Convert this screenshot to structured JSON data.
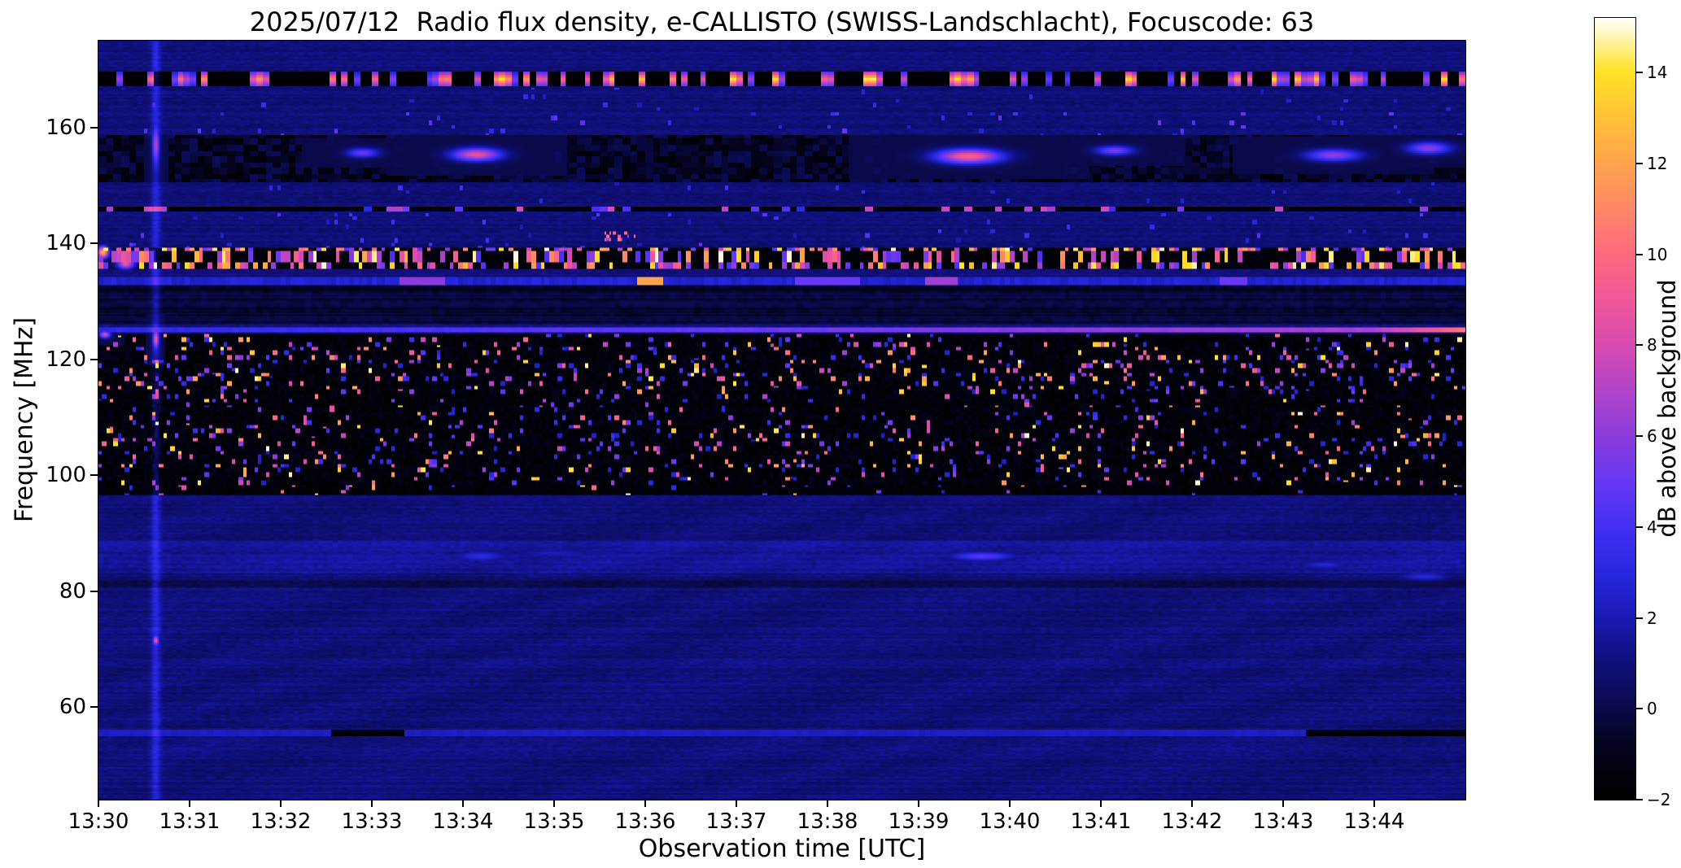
{
  "chart_data": {
    "type": "heatmap",
    "title": "2025/07/12  Radio flux density, e-CALLISTO (SWISS-Landschlacht), Focuscode: 63",
    "xlabel": "Observation time [UTC]",
    "ylabel": "Frequency [MHz]",
    "x_tick_labels": [
      "13:30",
      "13:31",
      "13:32",
      "13:33",
      "13:34",
      "13:35",
      "13:36",
      "13:37",
      "13:38",
      "13:39",
      "13:40",
      "13:41",
      "13:42",
      "13:43",
      "13:44"
    ],
    "x_range_minutes": [
      0,
      15
    ],
    "ylim": [
      44,
      175
    ],
    "y_ticks": [
      60,
      80,
      100,
      120,
      140,
      160
    ],
    "colorbar": {
      "label": "dB above background",
      "vmin": -2,
      "vmax": 15.2,
      "ticks": [
        {
          "v": -2,
          "label": "−2"
        },
        {
          "v": 0,
          "label": "0"
        },
        {
          "v": 2,
          "label": "2"
        },
        {
          "v": 4,
          "label": "4"
        },
        {
          "v": 6,
          "label": "6"
        },
        {
          "v": 8,
          "label": "8"
        },
        {
          "v": 10,
          "label": "10"
        },
        {
          "v": 12,
          "label": "12"
        },
        {
          "v": 14,
          "label": "14"
        }
      ],
      "colormap": [
        [
          -2.0,
          "#000000"
        ],
        [
          -0.8,
          "#04041e"
        ],
        [
          0.0,
          "#0a0a4a"
        ],
        [
          1.0,
          "#10107a"
        ],
        [
          2.0,
          "#1a1ab4"
        ],
        [
          3.0,
          "#2828e0"
        ],
        [
          4.0,
          "#4430f2"
        ],
        [
          5.0,
          "#6838f4"
        ],
        [
          6.0,
          "#8c3cdc"
        ],
        [
          7.0,
          "#b244c8"
        ],
        [
          8.0,
          "#d84cb2"
        ],
        [
          9.0,
          "#f05898"
        ],
        [
          10.0,
          "#ff6a80"
        ],
        [
          11.0,
          "#ff8866"
        ],
        [
          12.0,
          "#ffa44e"
        ],
        [
          13.0,
          "#ffc238"
        ],
        [
          14.0,
          "#ffe226"
        ],
        [
          15.2,
          "#ffffff"
        ]
      ]
    },
    "features": {
      "background": {
        "base": 0.95,
        "noise": 0.6,
        "row_stripe": 0.5,
        "ripple_amp": 0.16,
        "ripple_below_mhz": 96
      },
      "vertical_stripe": {
        "time_min": 0.63,
        "width_min": 0.05,
        "strength": 2.0
      },
      "band_168": {
        "freq": 168.3,
        "half_width": 1.3,
        "base": -1.8,
        "dot_cell_s": 4,
        "dot_prob": 0.34,
        "dot_v_min": 5,
        "dot_v_max": 15
      },
      "band_156": {
        "freq_lo": 150.6,
        "freq_hi": 158.6,
        "base": -0.7,
        "mottle": 2.1,
        "blobs": [
          {
            "t": 4.15,
            "w": 0.45,
            "f": 155.3,
            "fh": 1.6,
            "v": 8.5
          },
          {
            "t": 9.55,
            "w": 0.6,
            "f": 155.0,
            "fh": 1.8,
            "v": 9.5
          },
          {
            "t": 2.9,
            "w": 0.3,
            "f": 155.6,
            "fh": 1.2,
            "v": 5.0
          },
          {
            "t": 11.15,
            "w": 0.35,
            "f": 156.0,
            "fh": 1.2,
            "v": 5.5
          },
          {
            "t": 13.55,
            "w": 0.5,
            "f": 155.2,
            "fh": 1.5,
            "v": 6.0
          },
          {
            "t": 14.6,
            "w": 0.4,
            "f": 156.4,
            "fh": 1.5,
            "v": 6.0
          }
        ]
      },
      "band_146": {
        "freq": 145.8,
        "half_width": 0.4,
        "base": -1.5,
        "dash_cell_s": 5,
        "dash_prob": 0.16,
        "dash_v_min": 3,
        "dash_v_max": 8
      },
      "band_137": {
        "freq_lo": 135.6,
        "freq_hi": 139.2,
        "base": -1.6,
        "dash_cell_s": 3,
        "dash_prob": 0.4,
        "dash_v_min": 4,
        "dash_v_max": 15
      },
      "band_1335": {
        "freq": 133.5,
        "half_width": 0.6,
        "base_v": 2.6,
        "segments": [
          {
            "t": 3.55,
            "w": 0.5,
            "v": 6.0
          },
          {
            "t": 6.05,
            "w": 0.28,
            "v": 12.0
          },
          {
            "t": 8.0,
            "w": 0.7,
            "v": 5.0
          },
          {
            "t": 9.25,
            "w": 0.35,
            "v": 6.5
          },
          {
            "t": 12.45,
            "w": 0.3,
            "v": 5.0
          }
        ]
      },
      "band_125": {
        "freq": 125.0,
        "half_width": 0.4,
        "v_left": 3.2,
        "v_right": 7.0,
        "boost_after_min": 14.0,
        "boost": 3.5
      },
      "mid_dark_region": {
        "freq_lo": 126.0,
        "freq_hi": 133.0,
        "base": -0.4,
        "mottle": 1.1
      },
      "speckle_region": {
        "freq_lo": 96.5,
        "freq_hi": 124.3,
        "base": -1.55,
        "base_noise": 1.25,
        "cell_s": 2.5,
        "cell_mhz": 0.75,
        "v_min": 2.5,
        "v_max": 15,
        "prob_base": 0.05,
        "prob_peaks": [
          {
            "f": 118.5,
            "sigma": 4.5,
            "p": 0.085
          },
          {
            "f": 104.5,
            "sigma": 5.5,
            "p": 0.055
          }
        ],
        "dark_rows": [
          {
            "f": 97.3,
            "hw": 0.6
          },
          {
            "f": 112.3,
            "hw": 0.35
          }
        ]
      },
      "sparse_speckles": [
        {
          "freq_lo": 139.3,
          "freq_hi": 145.2,
          "prob": 0.02,
          "v_min": 2.0,
          "v_max": 5.0
        },
        {
          "freq_lo": 147.0,
          "freq_hi": 150.5,
          "prob": 0.01,
          "v_min": 2.0,
          "v_max": 4.0
        },
        {
          "freq_lo": 158.7,
          "freq_hi": 162.5,
          "prob": 0.025,
          "v_min": 2.5,
          "v_max": 5.0
        },
        {
          "freq_lo": 163.0,
          "freq_hi": 166.8,
          "prob": 0.008,
          "v_min": 2.0,
          "v_max": 4.0
        }
      ],
      "cluster_141": {
        "t0": 5.55,
        "t1": 5.95,
        "freq_lo": 140.3,
        "freq_hi": 142.2,
        "prob": 0.3,
        "v_min": 6.0,
        "v_max": 12.0
      },
      "band_86": {
        "freq_lo": 83.0,
        "freq_hi": 88.8,
        "boost": 0.5,
        "blobs": [
          {
            "t": 4.2,
            "w": 0.5,
            "f": 86.0,
            "fh": 1.2,
            "v": 3.2
          },
          {
            "t": 5.0,
            "w": 0.8,
            "f": 86.5,
            "fh": 1.0,
            "v": 2.2
          },
          {
            "t": 9.7,
            "w": 0.6,
            "f": 86.0,
            "fh": 1.1,
            "v": 4.6
          },
          {
            "t": 13.45,
            "w": 0.45,
            "f": 84.5,
            "fh": 1.0,
            "v": 2.8
          },
          {
            "t": 14.55,
            "w": 0.45,
            "f": 82.5,
            "fh": 1.0,
            "v": 3.0
          }
        ]
      },
      "band_81": {
        "freq": 81.2,
        "half_width": 0.7,
        "delta": -0.9
      },
      "band_55": {
        "freq": 55.5,
        "half_width": 0.45,
        "v": 2.3,
        "dark_segments": [
          {
            "t0": 2.55,
            "t1": 3.35
          },
          {
            "t0": 13.25,
            "t1": 15.0
          }
        ]
      },
      "hot_spots": [
        {
          "t": 0.05,
          "w": 0.1,
          "f": 138.5,
          "fh": 1.4,
          "v": 13.0
        },
        {
          "t": 0.07,
          "w": 0.1,
          "f": 124.3,
          "fh": 0.9,
          "v": 8.0
        },
        {
          "t": 0.3,
          "w": 0.15,
          "f": 136.5,
          "fh": 1.2,
          "v": 9.0
        },
        {
          "t": 0.63,
          "w": 0.06,
          "f": 157.0,
          "fh": 4.0,
          "v": 5.0
        },
        {
          "t": 0.63,
          "w": 0.05,
          "f": 71.5,
          "fh": 1.0,
          "v": 7.0
        },
        {
          "t": 0.63,
          "w": 0.05,
          "f": 123.5,
          "fh": 2.0,
          "v": 7.0
        }
      ]
    }
  }
}
